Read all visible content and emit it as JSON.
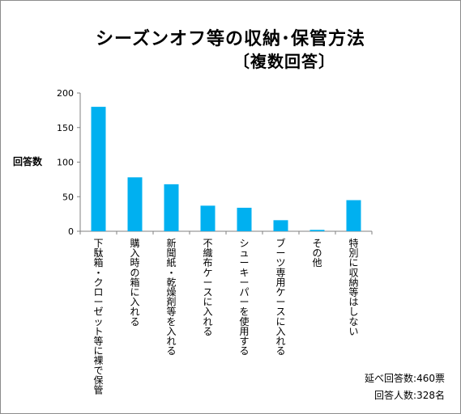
{
  "chart_data": {
    "type": "bar",
    "title": "シーズンオフ等の収納･保管方法",
    "subtitle": "〔複数回答〕",
    "ylabel": "回答数",
    "xlabel": "",
    "ylim": [
      0,
      200
    ],
    "yticks": [
      0,
      50,
      100,
      150,
      200
    ],
    "grid": false,
    "categories": [
      "下駄箱・クローゼット等に裸で保管",
      "購入時の箱に入れる",
      "新聞紙・乾燥剤等を入れる",
      "不織布ケースに入れる",
      "シューキーパーを使用する",
      "ブーツ専用ケースに入れる",
      "その他",
      "特別に収納等はしない"
    ],
    "values": [
      180,
      78,
      68,
      37,
      34,
      16,
      2,
      45
    ],
    "bar_color": "#00b0f0"
  },
  "notes": {
    "line1": "延べ回答数:460票",
    "line2": "回答人数:328名"
  }
}
